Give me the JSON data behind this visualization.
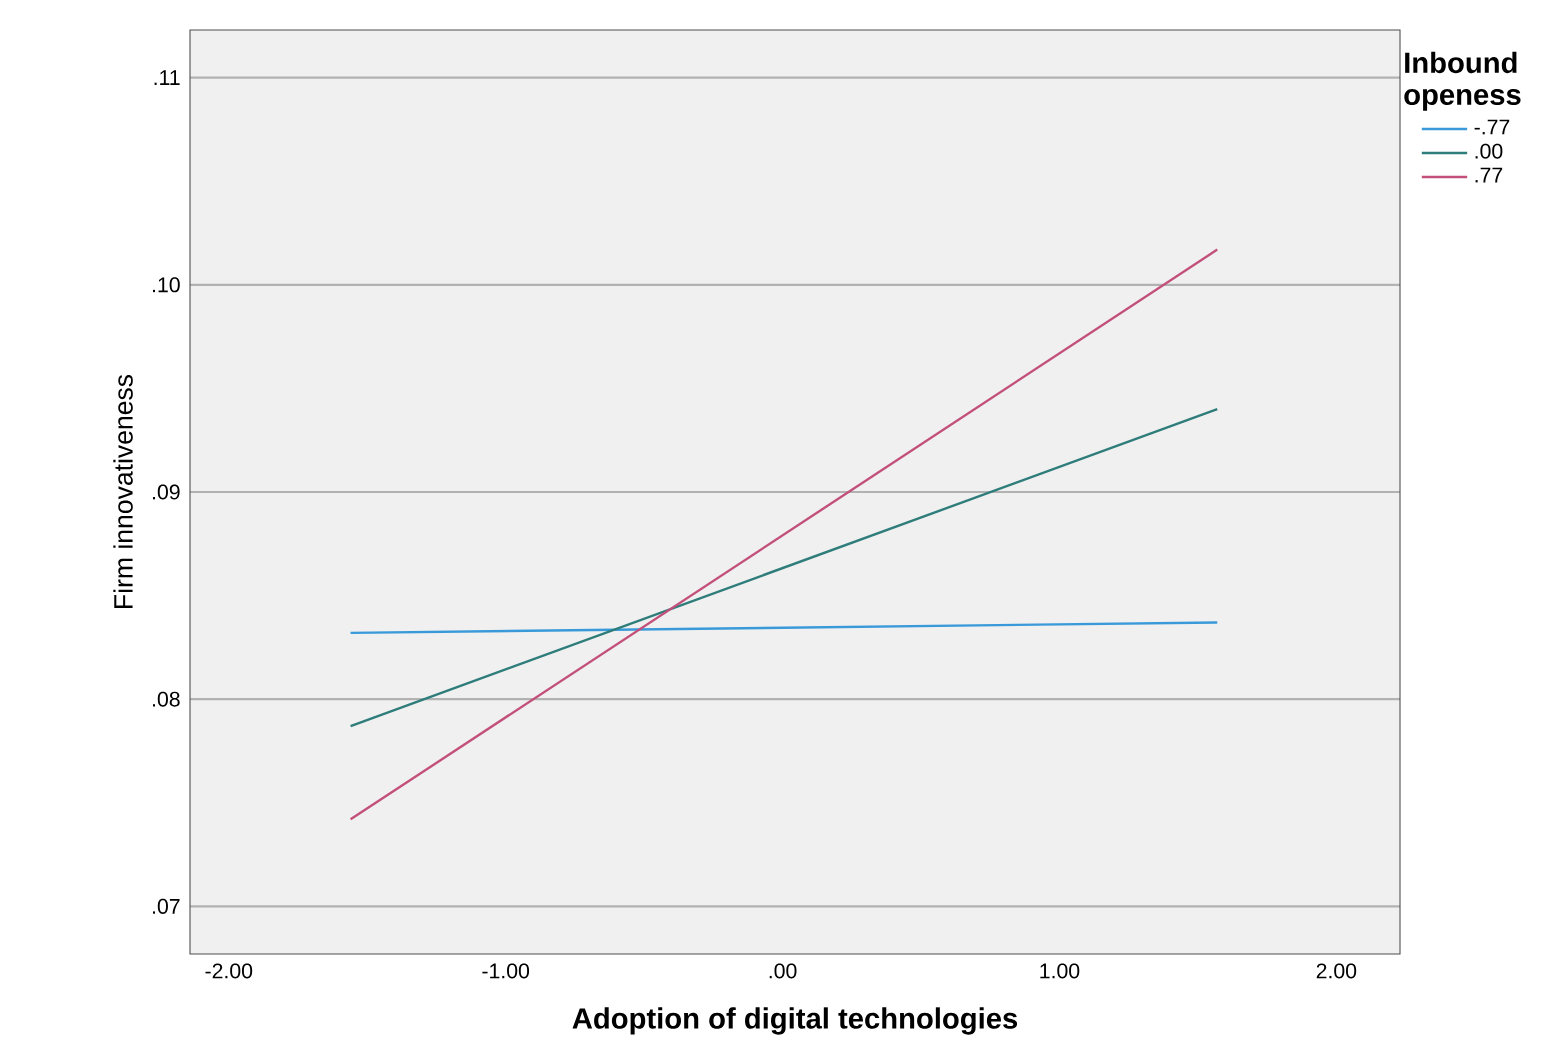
{
  "chart_data": {
    "type": "line",
    "xlabel": "Adoption of digital technologies",
    "ylabel": "Firm innovativeness",
    "legend_title": "Inbound openess",
    "xlim": [
      -2.14,
      2.23
    ],
    "ylim": [
      0.0677,
      0.1123
    ],
    "xticks": [
      {
        "value": -2,
        "label": "-2.00"
      },
      {
        "value": -1,
        "label": "-1.00"
      },
      {
        "value": 0,
        "label": ".00"
      },
      {
        "value": 1,
        "label": "1.00"
      },
      {
        "value": 2,
        "label": "2.00"
      }
    ],
    "yticks": [
      {
        "value": 0.07,
        "label": ".07"
      },
      {
        "value": 0.08,
        "label": ".08"
      },
      {
        "value": 0.09,
        "label": ".09"
      },
      {
        "value": 0.1,
        "label": ".10"
      },
      {
        "value": 0.11,
        "label": ".11"
      }
    ],
    "grid": "y",
    "legend": "top right",
    "marker": "none",
    "line_style": "solid",
    "x": [
      -1.56,
      1.57
    ],
    "series": [
      {
        "name": "-.77",
        "color": "#3a9ad9",
        "values": [
          0.0832,
          0.0837
        ]
      },
      {
        "name": ".00",
        "color": "#2e7d7a",
        "values": [
          0.0787,
          0.094
        ]
      },
      {
        "name": ".77",
        "color": "#c2507a",
        "values": [
          0.0742,
          0.1017
        ]
      }
    ]
  }
}
